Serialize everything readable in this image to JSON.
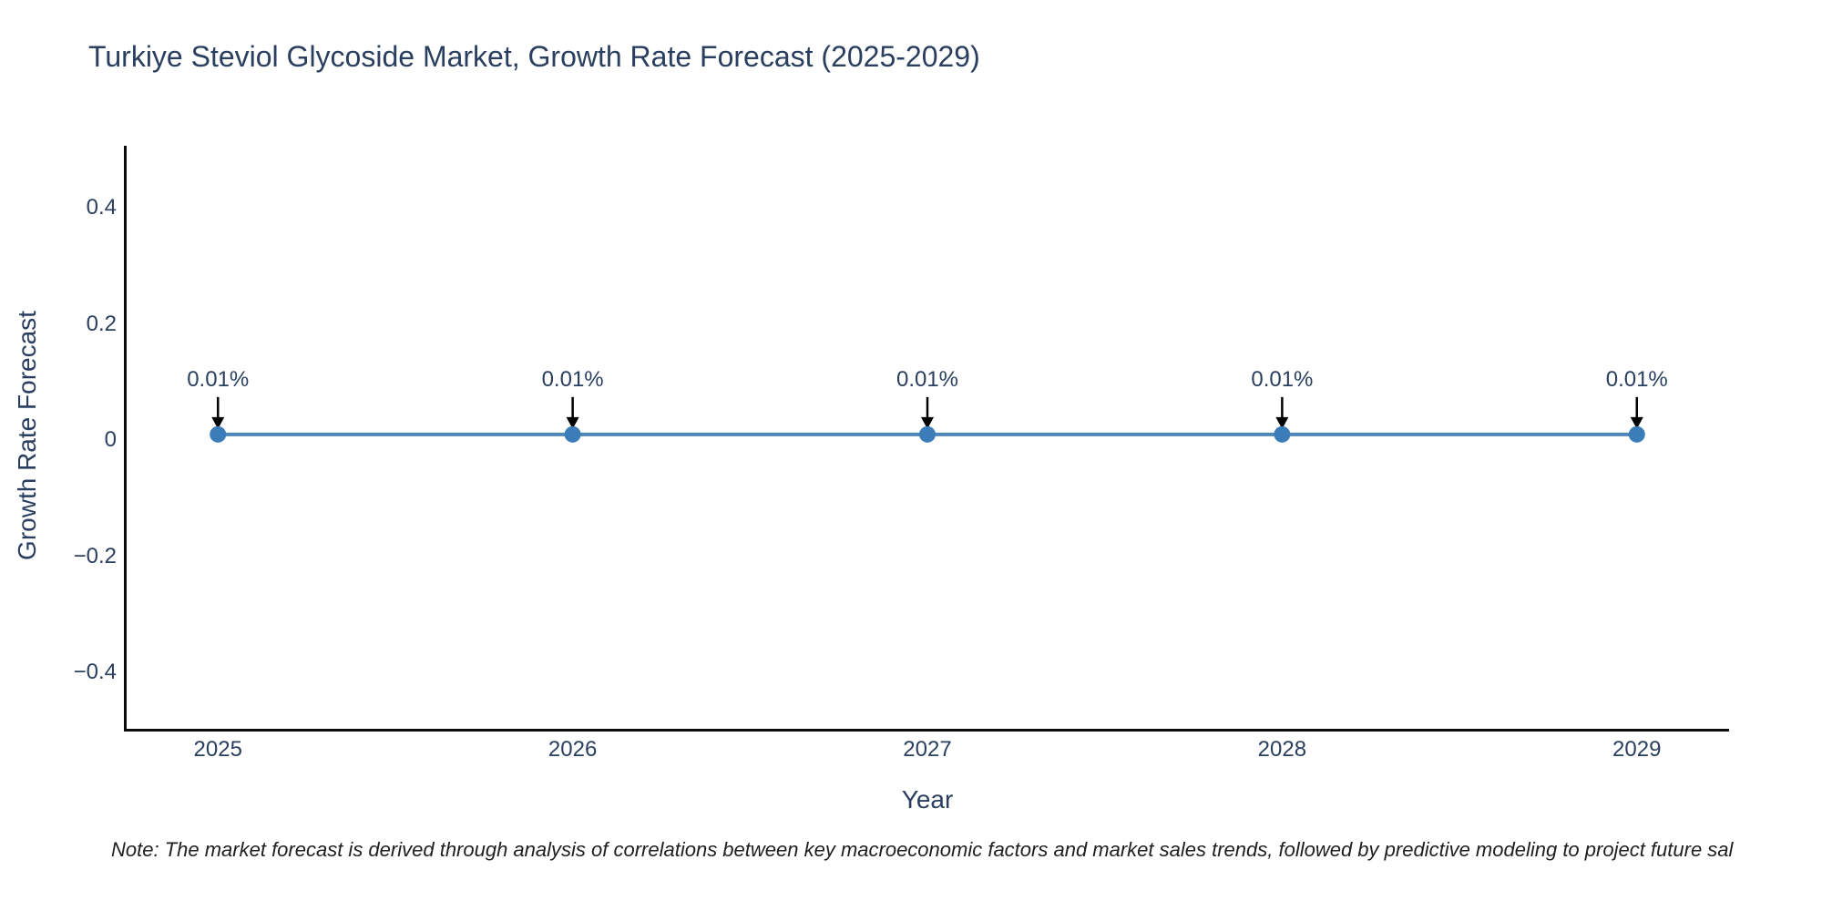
{
  "title": "Turkiye Steviol Glycoside Market, Growth Rate Forecast (2025-2029)",
  "note": "Note: The market forecast is derived through analysis of correlations between key macroeconomic factors and market sales trends, followed by predictive modeling to project future sal",
  "colors": {
    "title_text": "#2a3f5f",
    "tick_text": "#2a3f5f",
    "axis_line": "#0c0c0c",
    "series_line": "#4e86b8",
    "marker_fill": "#3b7db8",
    "annotation_arrow": "#000000",
    "note_text": "#1f1f1f",
    "background": "#ffffff"
  },
  "chart_data": {
    "type": "line",
    "title": "Turkiye Steviol Glycoside Market, Growth Rate Forecast (2025-2029)",
    "xlabel": "Year",
    "ylabel": "Growth Rate Forecast",
    "x": [
      2025,
      2026,
      2027,
      2028,
      2029
    ],
    "values": [
      0.01,
      0.01,
      0.01,
      0.01,
      0.01
    ],
    "point_labels": [
      "0.01%",
      "0.01%",
      "0.01%",
      "0.01%",
      "0.01%"
    ],
    "x_tick_labels": [
      "2025",
      "2026",
      "2027",
      "2028",
      "2029"
    ],
    "y_ticks": [
      0.4,
      0.2,
      0,
      -0.2,
      -0.4
    ],
    "y_tick_labels": [
      "0.4",
      "0.2",
      "0",
      "−0.2",
      "−0.4"
    ],
    "x_range": [
      2024.74,
      2029.26
    ],
    "y_range": [
      -0.497,
      0.507
    ],
    "grid": false,
    "legend": "none",
    "marker": "circle",
    "annotation_style": "arrow-down"
  }
}
